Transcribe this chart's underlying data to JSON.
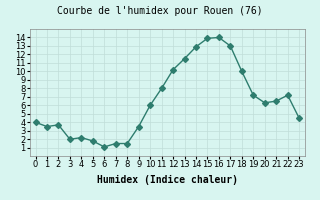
{
  "title": "Courbe de l'humidex pour Rouen (76)",
  "xlabel": "Humidex (Indice chaleur)",
  "x": [
    0,
    1,
    2,
    3,
    4,
    5,
    6,
    7,
    8,
    9,
    10,
    11,
    12,
    13,
    14,
    15,
    16,
    17,
    18,
    19,
    20,
    21,
    22,
    23
  ],
  "y": [
    4.0,
    3.5,
    3.7,
    2.0,
    2.2,
    1.8,
    1.1,
    1.5,
    1.5,
    3.5,
    6.0,
    8.0,
    10.2,
    11.5,
    12.9,
    13.9,
    14.0,
    13.0,
    10.0,
    7.2,
    6.3,
    6.5,
    7.2,
    4.5
  ],
  "line_color": "#2e7d6e",
  "marker": "D",
  "marker_size": 3,
  "background_color": "#d8f5f0",
  "grid_color": "#c0ddd8",
  "ylim": [
    0,
    15
  ],
  "yticks": [
    1,
    2,
    3,
    4,
    5,
    6,
    7,
    8,
    9,
    10,
    11,
    12,
    13,
    14
  ],
  "xticks": [
    0,
    1,
    2,
    3,
    4,
    5,
    6,
    7,
    8,
    9,
    10,
    11,
    12,
    13,
    14,
    15,
    16,
    17,
    18,
    19,
    20,
    21,
    22,
    23
  ],
  "title_fontsize": 7,
  "label_fontsize": 7,
  "tick_fontsize": 6
}
